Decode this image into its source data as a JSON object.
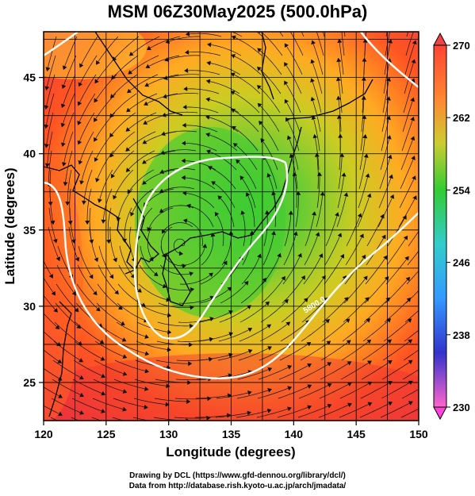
{
  "title": "MSM 06Z30May2025 (500.0hPa)",
  "x_axis": {
    "label": "Longitude (degrees)",
    "ticks": [
      120,
      125,
      130,
      135,
      140,
      145,
      150
    ],
    "range": [
      120,
      150
    ]
  },
  "y_axis": {
    "label": "Latitude  (degrees)",
    "ticks": [
      25,
      30,
      35,
      40,
      45
    ],
    "range": [
      22.5,
      48
    ]
  },
  "colorbar": {
    "ticks": [
      270,
      262,
      254,
      246,
      238,
      230
    ],
    "range": [
      230,
      270
    ],
    "colors": [
      "#ff66cc",
      "#cc33cc",
      "#3333cc",
      "#3399ff",
      "#33cccc",
      "#33cc66",
      "#66cc33",
      "#cccc33",
      "#ffcc33",
      "#ff8833",
      "#ff4433",
      "#e83a3a"
    ]
  },
  "contour_label": "5800.0",
  "footer": {
    "line1": "Drawing by DCL (https://www.gfd-dennou.org/library/dcl/)",
    "line2": "Data from http://database.rish.kyoto-u.ac.jp/arch/jmadata/"
  }
}
